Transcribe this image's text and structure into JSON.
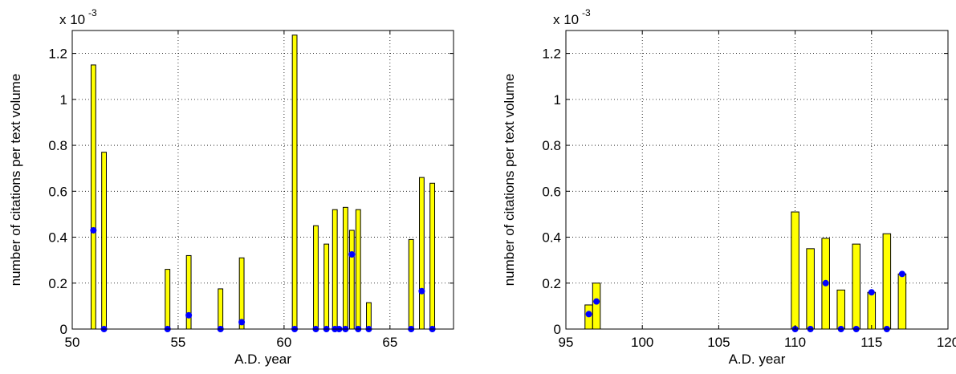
{
  "chart_data": [
    {
      "type": "bar",
      "xlabel": "A.D. year",
      "ylabel": "number of citations per text volume",
      "scale_label": "x 10",
      "scale_exponent": "-3",
      "xlim": [
        50,
        68
      ],
      "ylim": [
        0,
        1.3
      ],
      "xticks": [
        "50",
        "55",
        "60",
        "65"
      ],
      "yticks": [
        "0",
        "0.2",
        "0.4",
        "0.6",
        "0.8",
        "1",
        "1.2"
      ],
      "grid": true,
      "bar_color": "#ffff00",
      "point_color": "#0000ff",
      "bars": [
        {
          "x": 51.0,
          "y": 1.15
        },
        {
          "x": 51.5,
          "y": 0.77
        },
        {
          "x": 54.5,
          "y": 0.26
        },
        {
          "x": 55.5,
          "y": 0.32
        },
        {
          "x": 57.0,
          "y": 0.175
        },
        {
          "x": 58.0,
          "y": 0.31
        },
        {
          "x": 60.5,
          "y": 1.28
        },
        {
          "x": 61.5,
          "y": 0.45
        },
        {
          "x": 62.0,
          "y": 0.37
        },
        {
          "x": 62.4,
          "y": 0.52
        },
        {
          "x": 62.9,
          "y": 0.53
        },
        {
          "x": 63.2,
          "y": 0.43
        },
        {
          "x": 63.5,
          "y": 0.52
        },
        {
          "x": 64.0,
          "y": 0.115
        },
        {
          "x": 66.0,
          "y": 0.39
        },
        {
          "x": 66.5,
          "y": 0.66
        },
        {
          "x": 67.0,
          "y": 0.635
        }
      ],
      "points": [
        {
          "x": 51.0,
          "y": 0.43
        },
        {
          "x": 51.5,
          "y": 0.0
        },
        {
          "x": 54.5,
          "y": 0.0
        },
        {
          "x": 55.5,
          "y": 0.06
        },
        {
          "x": 57.0,
          "y": 0.0
        },
        {
          "x": 58.0,
          "y": 0.03
        },
        {
          "x": 60.5,
          "y": 0.0
        },
        {
          "x": 61.5,
          "y": 0.0
        },
        {
          "x": 62.0,
          "y": 0.0
        },
        {
          "x": 62.4,
          "y": 0.0
        },
        {
          "x": 62.6,
          "y": 0.0
        },
        {
          "x": 62.9,
          "y": 0.0
        },
        {
          "x": 63.2,
          "y": 0.325
        },
        {
          "x": 63.5,
          "y": 0.0
        },
        {
          "x": 64.0,
          "y": 0.0
        },
        {
          "x": 66.0,
          "y": 0.0
        },
        {
          "x": 66.5,
          "y": 0.165
        },
        {
          "x": 67.0,
          "y": 0.0
        }
      ]
    },
    {
      "type": "bar",
      "xlabel": "A.D. year",
      "ylabel": "number of citations per text volume",
      "scale_label": "x 10",
      "scale_exponent": "-3",
      "xlim": [
        95,
        120
      ],
      "ylim": [
        0,
        1.3
      ],
      "xticks": [
        "95",
        "100",
        "105",
        "110",
        "115",
        "120"
      ],
      "yticks": [
        "0",
        "0.2",
        "0.4",
        "0.6",
        "0.8",
        "1",
        "1.2"
      ],
      "grid": true,
      "bar_color": "#ffff00",
      "point_color": "#0000ff",
      "bars": [
        {
          "x": 96.5,
          "y": 0.105
        },
        {
          "x": 97.0,
          "y": 0.2
        },
        {
          "x": 110.0,
          "y": 0.51
        },
        {
          "x": 111.0,
          "y": 0.35
        },
        {
          "x": 112.0,
          "y": 0.395
        },
        {
          "x": 113.0,
          "y": 0.17
        },
        {
          "x": 114.0,
          "y": 0.37
        },
        {
          "x": 115.0,
          "y": 0.16
        },
        {
          "x": 116.0,
          "y": 0.415
        },
        {
          "x": 117.0,
          "y": 0.24
        }
      ],
      "points": [
        {
          "x": 96.5,
          "y": 0.065
        },
        {
          "x": 97.0,
          "y": 0.12
        },
        {
          "x": 110.0,
          "y": 0.0
        },
        {
          "x": 111.0,
          "y": 0.0
        },
        {
          "x": 112.0,
          "y": 0.2
        },
        {
          "x": 113.0,
          "y": 0.0
        },
        {
          "x": 114.0,
          "y": 0.0
        },
        {
          "x": 115.0,
          "y": 0.16
        },
        {
          "x": 116.0,
          "y": 0.0
        },
        {
          "x": 117.0,
          "y": 0.24
        }
      ]
    }
  ]
}
